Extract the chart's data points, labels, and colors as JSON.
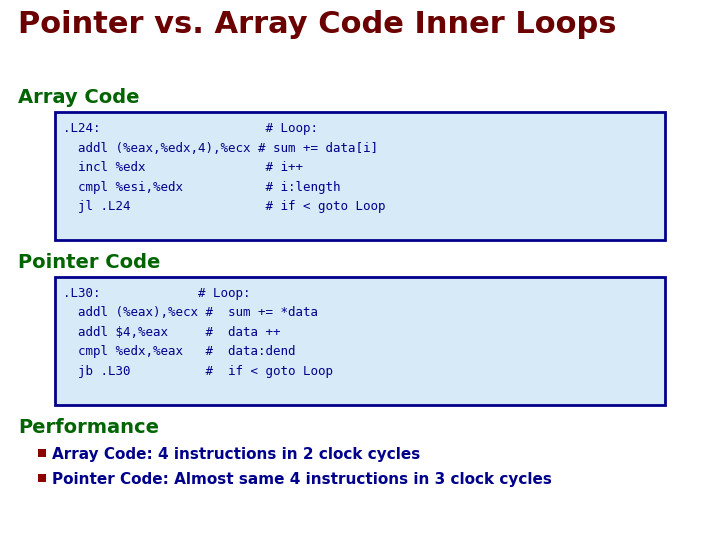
{
  "title": "Pointer vs. Array Code Inner Loops",
  "title_color": "#6B0000",
  "title_fontsize": 22,
  "bg_color": "#FFFFFF",
  "section_label_color": "#006400",
  "section_label_fontsize": 14,
  "code_text_color": "#00008B",
  "code_bg_color": "#D6EAF8",
  "code_border_color": "#00008B",
  "perf_label": "Performance",
  "array_section_label": "Array Code",
  "pointer_section_label": "Pointer Code",
  "array_code_lines": [
    ".L24:                      # Loop:",
    "  addl (%eax,%edx,4),%ecx # sum += data[i]",
    "  incl %edx                # i++",
    "  cmpl %esi,%edx           # i:length",
    "  jl .L24                  # if < goto Loop"
  ],
  "pointer_code_lines": [
    ".L30:             # Loop:",
    "  addl (%eax),%ecx #  sum += *data",
    "  addl $4,%eax     #  data ++",
    "  cmpl %edx,%eax   #  data:dend",
    "  jb .L30          #  if < goto Loop"
  ],
  "perf_bullets": [
    "Array Code: 4 instructions in 2 clock cycles",
    "Pointer Code: Almost same 4 instructions in 3 clock cycles"
  ],
  "bullet_color": "#8B0000",
  "bullet_text_color": "#00008B",
  "code_fontsize": 9,
  "perf_fontsize": 11
}
